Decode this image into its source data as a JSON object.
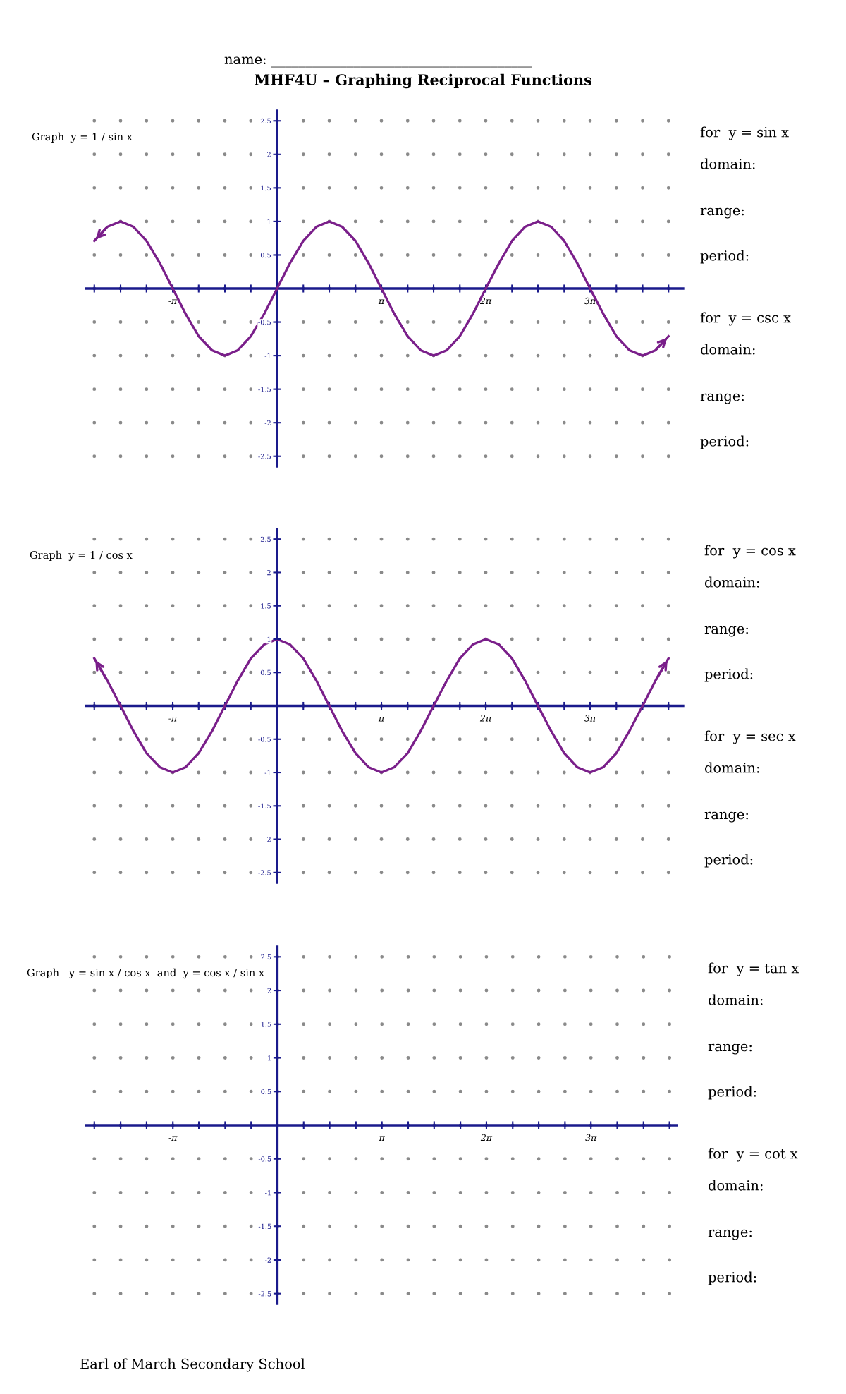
{
  "chart_data": [
    {
      "type": "line",
      "title": "MHF4U – Graphing Reciprocal Functions",
      "annotations": [
        "Graph  y = 1 / sin x",
        "for  y = sin x",
        "domain:",
        "range:",
        "period:",
        "for  y = csc x",
        "domain:",
        "range:",
        "period:",
        "name: ______________________________________"
      ],
      "xlim": [
        -5.75,
        12.22
      ],
      "ylim": [
        -2.65,
        2.65
      ],
      "xticks": [
        {
          "value": -5.5,
          "label": null
        },
        {
          "value": -4.71,
          "label": null
        },
        {
          "value": -3.93,
          "label": null
        },
        {
          "value": -3.14,
          "label": "-π"
        },
        {
          "value": -2.36,
          "label": null
        },
        {
          "value": -1.57,
          "label": null
        },
        {
          "value": -0.79,
          "label": null
        },
        {
          "value": 0,
          "label": null
        },
        {
          "value": 0.79,
          "label": null
        },
        {
          "value": 1.57,
          "label": null
        },
        {
          "value": 2.36,
          "label": null
        },
        {
          "value": 3.14,
          "label": "π"
        },
        {
          "value": 3.93,
          "label": null
        },
        {
          "value": 4.71,
          "label": null
        },
        {
          "value": 5.5,
          "label": null
        },
        {
          "value": 6.28,
          "label": "2π"
        },
        {
          "value": 7.07,
          "label": null
        },
        {
          "value": 7.85,
          "label": null
        },
        {
          "value": 8.64,
          "label": null
        },
        {
          "value": 9.42,
          "label": "3π"
        },
        {
          "value": 10.21,
          "label": null
        },
        {
          "value": 11.0,
          "label": null
        },
        {
          "value": 11.78,
          "label": null
        }
      ],
      "yticks": [
        -2.5,
        -2,
        -1.5,
        -1,
        -0.5,
        0.5,
        1,
        1.5,
        2,
        2.5
      ],
      "grid": true,
      "marker": "none",
      "line_style": "solid",
      "series": [
        {
          "color": "#7a1f8a",
          "x": [
            -5.5,
            -5.11,
            -4.71,
            -4.32,
            -3.93,
            -3.53,
            -3.14,
            -2.75,
            -2.36,
            -1.96,
            -1.57,
            -1.18,
            -0.79,
            -0.39,
            0,
            0.39,
            0.79,
            1.18,
            1.57,
            1.96,
            2.36,
            2.75,
            3.14,
            3.53,
            3.93,
            4.32,
            4.71,
            5.11,
            5.5,
            5.89,
            6.28,
            6.68,
            7.07,
            7.46,
            7.85,
            8.25,
            8.64,
            9.03,
            9.42,
            9.82,
            10.21,
            10.6,
            11.0,
            11.39,
            11.78
          ],
          "values": [
            0.71,
            0.92,
            1,
            0.92,
            0.71,
            0.38,
            0,
            -0.38,
            -0.71,
            -0.92,
            -1,
            -0.92,
            -0.71,
            -0.38,
            0,
            0.38,
            0.71,
            0.92,
            1,
            0.92,
            0.71,
            0.38,
            0,
            -0.38,
            -0.71,
            -0.92,
            -1,
            -0.92,
            -0.71,
            -0.38,
            0,
            0.38,
            0.71,
            0.92,
            1,
            0.92,
            0.71,
            0.38,
            0,
            -0.38,
            -0.71,
            -0.92,
            -1,
            -0.92,
            -0.71
          ]
        }
      ]
    },
    {
      "type": "line",
      "annotations": [
        "Graph  y = 1 / cos x",
        "for  y = cos x",
        "domain:",
        "range:",
        "period:",
        "for  y = sec x",
        "domain:",
        "range:",
        "period:"
      ],
      "xlim": [
        -5.75,
        12.22
      ],
      "ylim": [
        -2.65,
        2.65
      ],
      "xticks": [
        {
          "value": -5.5,
          "label": null
        },
        {
          "value": -4.71,
          "label": null
        },
        {
          "value": -3.93,
          "label": null
        },
        {
          "value": -3.14,
          "label": "-π"
        },
        {
          "value": -2.36,
          "label": null
        },
        {
          "value": -1.57,
          "label": null
        },
        {
          "value": -0.79,
          "label": null
        },
        {
          "value": 0,
          "label": null
        },
        {
          "value": 0.79,
          "label": null
        },
        {
          "value": 1.57,
          "label": null
        },
        {
          "value": 2.36,
          "label": null
        },
        {
          "value": 3.14,
          "label": "π"
        },
        {
          "value": 3.93,
          "label": null
        },
        {
          "value": 4.71,
          "label": null
        },
        {
          "value": 5.5,
          "label": null
        },
        {
          "value": 6.28,
          "label": "2π"
        },
        {
          "value": 7.07,
          "label": null
        },
        {
          "value": 7.85,
          "label": null
        },
        {
          "value": 8.64,
          "label": null
        },
        {
          "value": 9.42,
          "label": "3π"
        },
        {
          "value": 10.21,
          "label": null
        },
        {
          "value": 11.0,
          "label": null
        },
        {
          "value": 11.78,
          "label": null
        }
      ],
      "yticks": [
        -2.5,
        -2,
        -1.5,
        -1,
        -0.5,
        0.5,
        1,
        1.5,
        2,
        2.5
      ],
      "grid": true,
      "marker": "none",
      "line_style": "solid",
      "series": [
        {
          "color": "#7a1f8a",
          "x": [
            -5.5,
            -5.11,
            -4.71,
            -4.32,
            -3.93,
            -3.53,
            -3.14,
            -2.75,
            -2.36,
            -1.96,
            -1.57,
            -1.18,
            -0.79,
            -0.39,
            0,
            0.39,
            0.79,
            1.18,
            1.57,
            1.96,
            2.36,
            2.75,
            3.14,
            3.53,
            3.93,
            4.32,
            4.71,
            5.11,
            5.5,
            5.89,
            6.28,
            6.68,
            7.07,
            7.46,
            7.85,
            8.25,
            8.64,
            9.03,
            9.42,
            9.82,
            10.21,
            10.6,
            11.0,
            11.39,
            11.78
          ],
          "values": [
            0.71,
            0.38,
            0,
            -0.38,
            -0.71,
            -0.92,
            -1,
            -0.92,
            -0.71,
            -0.38,
            0,
            0.38,
            0.71,
            0.92,
            1,
            0.92,
            0.71,
            0.38,
            0,
            -0.38,
            -0.71,
            -0.92,
            -1,
            -0.92,
            -0.71,
            -0.38,
            0,
            0.38,
            0.71,
            0.92,
            1,
            0.92,
            0.71,
            0.38,
            0,
            -0.38,
            -0.71,
            -0.92,
            -1,
            -0.92,
            -0.71,
            -0.38,
            0,
            0.38,
            0.71
          ]
        }
      ]
    },
    {
      "type": "line",
      "annotations": [
        "Graph   y = sin x / cos x  and  y = cos x / sin x",
        "for  y = tan x",
        "domain:",
        "range:",
        "period:",
        "for  y = cot x",
        "domain:",
        "range:",
        "period:",
        "Earl of March Secondary School"
      ],
      "xlim": [
        -5.75,
        12.0
      ],
      "ylim": [
        -2.65,
        2.65
      ],
      "xticks": [
        {
          "value": -5.5,
          "label": null
        },
        {
          "value": -4.71,
          "label": null
        },
        {
          "value": -3.93,
          "label": null
        },
        {
          "value": -3.14,
          "label": "-π"
        },
        {
          "value": -2.36,
          "label": null
        },
        {
          "value": -1.57,
          "label": null
        },
        {
          "value": -0.79,
          "label": null
        },
        {
          "value": 0,
          "label": null
        },
        {
          "value": 0.79,
          "label": null
        },
        {
          "value": 1.57,
          "label": null
        },
        {
          "value": 2.36,
          "label": null
        },
        {
          "value": 3.14,
          "label": "π"
        },
        {
          "value": 3.93,
          "label": null
        },
        {
          "value": 4.71,
          "label": null
        },
        {
          "value": 5.5,
          "label": null
        },
        {
          "value": 6.28,
          "label": "2π"
        },
        {
          "value": 7.07,
          "label": null
        },
        {
          "value": 7.85,
          "label": null
        },
        {
          "value": 8.64,
          "label": null
        },
        {
          "value": 9.42,
          "label": "3π"
        },
        {
          "value": 10.21,
          "label": null
        },
        {
          "value": 11.0,
          "label": null
        },
        {
          "value": 11.78,
          "label": null
        }
      ],
      "yticks": [
        -2.5,
        -2,
        -1.5,
        -1,
        -0.5,
        0.5,
        1,
        1.5,
        2,
        2.5
      ],
      "grid": true
    }
  ]
}
